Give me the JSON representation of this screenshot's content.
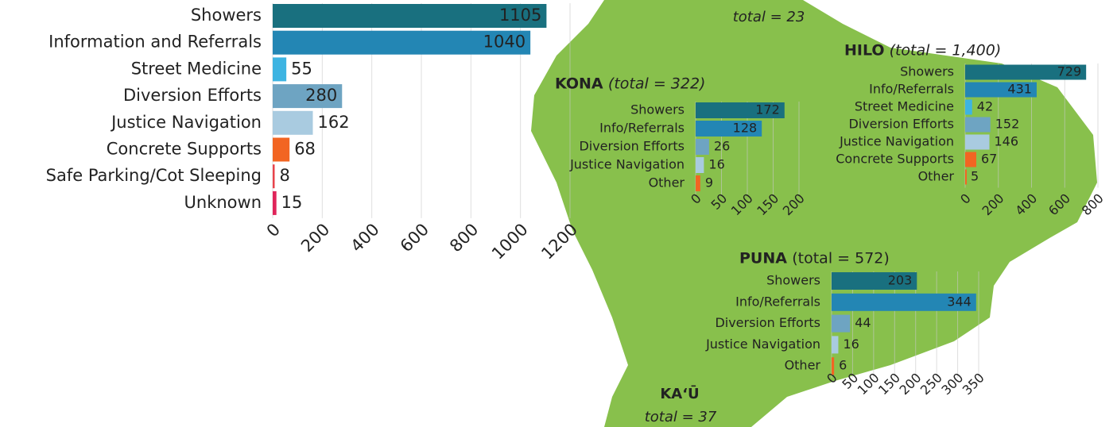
{
  "chart_data": [
    {
      "type": "bar",
      "orientation": "horizontal",
      "grid": true,
      "categories": [
        "Showers",
        "Information and Referrals",
        "Street Medicine",
        "Diversion Efforts",
        "Justice Navigation",
        "Concrete Supports",
        "Safe Parking/Cot Sleeping",
        "Unknown"
      ],
      "values": [
        1105,
        1040,
        55,
        280,
        162,
        68,
        8,
        15
      ],
      "colors": [
        "#19707f",
        "#2386b4",
        "#3db4e2",
        "#6ea4c2",
        "#a9cbe0",
        "#f26522",
        "#e8434c",
        "#e0245a"
      ],
      "xlim": [
        0,
        1200
      ],
      "xticks": [
        0,
        200,
        400,
        600,
        800,
        1000,
        1200
      ]
    },
    {
      "type": "bar",
      "orientation": "horizontal",
      "grid": true,
      "title": "KONA",
      "subtitle": "(total = 322)",
      "categories": [
        "Showers",
        "Info/Referrals",
        "Diversion Efforts",
        "Justice Navigation",
        "Other"
      ],
      "values": [
        172,
        128,
        26,
        16,
        9
      ],
      "colors": [
        "#19707f",
        "#2386b4",
        "#6ea4c2",
        "#a9cbe0",
        "#f26522"
      ],
      "xlim": [
        0,
        200
      ],
      "xticks": [
        0,
        50,
        100,
        150,
        200
      ]
    },
    {
      "type": "bar",
      "orientation": "horizontal",
      "grid": true,
      "title": "HILO",
      "subtitle": "(total = 1,400)",
      "categories": [
        "Showers",
        "Info/Referrals",
        "Street Medicine",
        "Diversion Efforts",
        "Justice Navigation",
        "Concrete Supports",
        "Other"
      ],
      "values": [
        729,
        431,
        42,
        152,
        146,
        67,
        5
      ],
      "colors": [
        "#19707f",
        "#2386b4",
        "#3db4e2",
        "#6ea4c2",
        "#a9cbe0",
        "#f26522",
        "#f26522"
      ],
      "xlim": [
        0,
        800
      ],
      "xticks": [
        0,
        200,
        400,
        600,
        800
      ]
    },
    {
      "type": "bar",
      "orientation": "horizontal",
      "grid": true,
      "title": "PUNA",
      "subtitle": "(total = 572)",
      "categories": [
        "Showers",
        "Info/Referrals",
        "Diversion Efforts",
        "Justice Navigation",
        "Other"
      ],
      "values": [
        203,
        344,
        44,
        16,
        6
      ],
      "colors": [
        "#19707f",
        "#2386b4",
        "#6ea4c2",
        "#a9cbe0",
        "#f26522"
      ],
      "xlim": [
        0,
        350
      ],
      "xticks": [
        0,
        50,
        100,
        150,
        200,
        250,
        300,
        350
      ]
    }
  ],
  "map": {
    "labels": [
      "total = 23",
      "KA‘Ū",
      "total = 37"
    ]
  }
}
